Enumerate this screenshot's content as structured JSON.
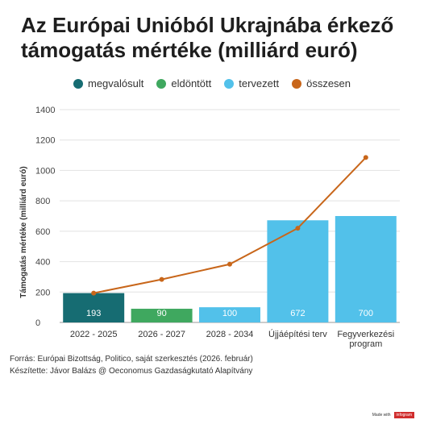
{
  "header": {
    "title_line1": "Az Európai Unióból Ukrajnába érkező",
    "title_line2": "támogatás mértéke (milliárd euró)"
  },
  "legend": [
    {
      "label": "megvalósult",
      "color": "#166c72"
    },
    {
      "label": "eldöntött",
      "color": "#3fa85f"
    },
    {
      "label": "tervezett",
      "color": "#52c1ea"
    },
    {
      "label": "összesen",
      "color": "#c8661a"
    }
  ],
  "chart_data": {
    "type": "bar",
    "categories": [
      "2022 - 2025",
      "2026 - 2027",
      "2028 - 2034",
      "Újjáépítési terv",
      "Fegyverkezési program"
    ],
    "category_lines": [
      [
        "2022 - 2025"
      ],
      [
        "2026 - 2027"
      ],
      [
        "2028 - 2034"
      ],
      [
        "Újjáépítési terv"
      ],
      [
        "Fegyverkezési",
        "program"
      ]
    ],
    "values": [
      193,
      90,
      100,
      672,
      700
    ],
    "value_labels": [
      "193",
      "90",
      "100",
      "672",
      "700"
    ],
    "bar_colors": [
      "#166c72",
      "#3fa85f",
      "#52c1ea",
      "#52c1ea",
      "#52c1ea"
    ],
    "line_series": {
      "name": "összesen",
      "values": [
        193,
        283,
        383,
        620,
        1085
      ],
      "color": "#c8661a"
    },
    "ylabel": "Támogatás mértéke (milliárd euró)",
    "ylim": [
      0,
      1400
    ],
    "yticks": [
      0,
      200,
      400,
      600,
      800,
      1000,
      1200,
      1400
    ],
    "grid": true
  },
  "footer": {
    "source": "Forrás: Európai Bizottság, Politico, saját szerkesztés (2026. február)",
    "author": "Készítette: Jávor Balázs @ Oeconomus Gazdaságkutató Alapítvány",
    "made_with": "Made with",
    "brand": "infogram"
  }
}
